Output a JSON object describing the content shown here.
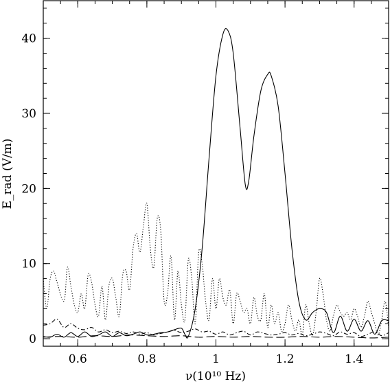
{
  "chart_data": {
    "type": "line",
    "xlabel": "ν(10¹⁰ Hz)",
    "ylabel": "E_rad (V/m)",
    "xlim": [
      0.5,
      1.5
    ],
    "ylim": [
      -1,
      45
    ],
    "xticks": [
      0.6,
      0.8,
      1.0,
      1.2,
      1.4
    ],
    "xtick_labels": [
      "0.6",
      "0.8",
      "1",
      "1.2",
      "1.4"
    ],
    "yticks": [
      0,
      10,
      20,
      30,
      40
    ],
    "ytick_labels": [
      "0",
      "10",
      "20",
      "30",
      "40"
    ],
    "grid": false,
    "legend": "none",
    "series": [
      {
        "style": "solid",
        "x": [
          0.5,
          0.52,
          0.54,
          0.56,
          0.58,
          0.6,
          0.62,
          0.64,
          0.66,
          0.68,
          0.7,
          0.72,
          0.74,
          0.76,
          0.78,
          0.8,
          0.82,
          0.84,
          0.86,
          0.88,
          0.9,
          0.91,
          0.92,
          0.94,
          0.96,
          0.98,
          1.0,
          1.02,
          1.035,
          1.05,
          1.07,
          1.085,
          1.095,
          1.11,
          1.13,
          1.15,
          1.16,
          1.18,
          1.2,
          1.22,
          1.24,
          1.26,
          1.28,
          1.3,
          1.32,
          1.34,
          1.36,
          1.38,
          1.4,
          1.42,
          1.44,
          1.46,
          1.48,
          1.5
        ],
        "y": [
          0.3,
          0.2,
          0.6,
          0.2,
          0.8,
          0.3,
          0.9,
          0.3,
          0.5,
          0.9,
          0.3,
          0.8,
          0.4,
          0.6,
          0.9,
          0.5,
          0.6,
          0.8,
          0.9,
          1.2,
          1.4,
          0.6,
          0.3,
          4.0,
          12.0,
          24.0,
          35.0,
          40.5,
          41.0,
          38.0,
          28.0,
          20.5,
          21.0,
          27.0,
          33.0,
          35.2,
          35.0,
          31.0,
          22.0,
          12.0,
          5.0,
          2.5,
          3.5,
          4.0,
          3.5,
          0.8,
          3.0,
          1.0,
          2.6,
          1.0,
          2.4,
          0.6,
          2.4,
          2.4
        ]
      },
      {
        "style": "dotted",
        "x": [
          0.5,
          0.51,
          0.52,
          0.53,
          0.54,
          0.56,
          0.57,
          0.58,
          0.59,
          0.6,
          0.61,
          0.62,
          0.63,
          0.64,
          0.65,
          0.66,
          0.67,
          0.68,
          0.69,
          0.7,
          0.71,
          0.72,
          0.73,
          0.74,
          0.75,
          0.76,
          0.77,
          0.78,
          0.79,
          0.8,
          0.81,
          0.82,
          0.83,
          0.84,
          0.85,
          0.86,
          0.87,
          0.88,
          0.89,
          0.9,
          0.91,
          0.92,
          0.93,
          0.94,
          0.95,
          0.96,
          0.97,
          0.98,
          0.99,
          1.0,
          1.01,
          1.02,
          1.03,
          1.04,
          1.05,
          1.06,
          1.07,
          1.08,
          1.09,
          1.1,
          1.11,
          1.12,
          1.13,
          1.14,
          1.15,
          1.16,
          1.17,
          1.18,
          1.19,
          1.2,
          1.21,
          1.22,
          1.23,
          1.24,
          1.25,
          1.26,
          1.27,
          1.28,
          1.29,
          1.3,
          1.31,
          1.32,
          1.33,
          1.34,
          1.35,
          1.36,
          1.37,
          1.38,
          1.39,
          1.4,
          1.41,
          1.42,
          1.43,
          1.44,
          1.45,
          1.46,
          1.47,
          1.48,
          1.49,
          1.5
        ],
        "y": [
          8.0,
          4.0,
          8.0,
          9.0,
          7.5,
          5.0,
          9.5,
          7.0,
          4.5,
          3.5,
          6.0,
          4.0,
          8.5,
          7.5,
          4.5,
          3.0,
          7.0,
          2.5,
          7.0,
          8.0,
          5.5,
          3.0,
          8.5,
          9.0,
          6.5,
          12.0,
          14.0,
          11.5,
          15.0,
          18.0,
          12.0,
          9.5,
          16.0,
          14.5,
          5.0,
          6.0,
          11.0,
          2.5,
          9.0,
          4.5,
          2.5,
          10.5,
          8.0,
          2.0,
          11.5,
          10.0,
          5.0,
          2.5,
          8.0,
          4.0,
          8.0,
          5.5,
          4.5,
          6.5,
          2.0,
          6.0,
          5.0,
          3.5,
          4.0,
          2.0,
          5.5,
          3.0,
          2.5,
          6.0,
          1.5,
          4.5,
          2.0,
          3.5,
          1.0,
          2.0,
          4.5,
          2.5,
          1.0,
          2.5,
          0.5,
          4.5,
          2.0,
          0.5,
          3.5,
          8.0,
          6.0,
          2.5,
          1.0,
          3.0,
          4.5,
          3.5,
          3.0,
          3.5,
          2.5,
          4.0,
          3.0,
          1.5,
          3.0,
          5.0,
          3.5,
          2.0,
          0.5,
          2.5,
          5.0,
          1.5
        ]
      },
      {
        "style": "dash-dot",
        "x": [
          0.5,
          0.52,
          0.54,
          0.56,
          0.58,
          0.6,
          0.62,
          0.64,
          0.66,
          0.68,
          0.7,
          0.72,
          0.74,
          0.76,
          0.78,
          0.8,
          0.82,
          0.84,
          0.86,
          0.88,
          0.9,
          0.92,
          0.94,
          0.96,
          0.98,
          1.0,
          1.02,
          1.04,
          1.06,
          1.08,
          1.1,
          1.12,
          1.14,
          1.16,
          1.18,
          1.2,
          1.22,
          1.24,
          1.26,
          1.28,
          1.3,
          1.32,
          1.34,
          1.36,
          1.38,
          1.4,
          1.42,
          1.44,
          1.46,
          1.48,
          1.5
        ],
        "y": [
          1.8,
          2.0,
          2.6,
          1.5,
          2.0,
          1.4,
          1.2,
          1.5,
          0.9,
          1.2,
          0.8,
          1.0,
          0.7,
          0.9,
          0.6,
          0.8,
          0.5,
          0.7,
          0.9,
          1.1,
          0.8,
          1.0,
          1.3,
          0.9,
          1.0,
          0.6,
          0.9,
          0.5,
          0.8,
          1.0,
          0.5,
          0.9,
          0.7,
          0.5,
          0.6,
          0.8,
          0.5,
          0.7,
          0.4,
          0.6,
          0.9,
          0.7,
          0.4,
          0.9,
          0.6,
          0.8,
          0.3,
          0.6,
          0.9,
          0.4,
          0.8
        ]
      },
      {
        "style": "long-dash",
        "x": [
          0.5,
          0.55,
          0.6,
          0.65,
          0.7,
          0.75,
          0.8,
          0.85,
          0.9,
          0.95,
          1.0,
          1.05,
          1.1,
          1.15,
          1.2,
          1.25,
          1.3,
          1.35,
          1.4,
          1.45,
          1.5
        ],
        "y": [
          0.2,
          0.3,
          0.2,
          0.4,
          0.3,
          0.5,
          0.4,
          0.3,
          0.4,
          0.2,
          0.3,
          0.2,
          0.3,
          0.2,
          0.2,
          0.3,
          0.2,
          0.3,
          0.2,
          0.1,
          0.2
        ]
      }
    ]
  }
}
